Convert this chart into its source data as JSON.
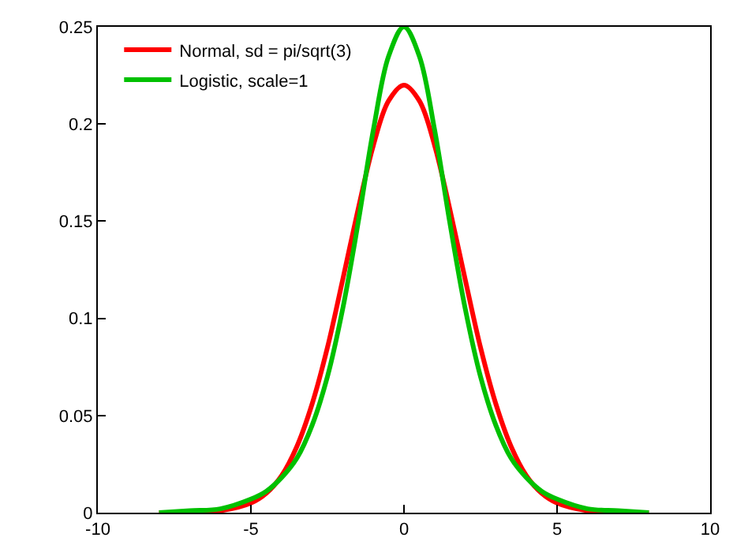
{
  "chart_data": {
    "type": "line",
    "x": [
      -8,
      -7,
      -6,
      -5,
      -4.5,
      -4,
      -3.5,
      -3,
      -2.5,
      -2,
      -1.5,
      -1,
      -0.5,
      0,
      0.5,
      1,
      1.5,
      2,
      2.5,
      3,
      3.5,
      4,
      4.5,
      5,
      6,
      7,
      8
    ],
    "series": [
      {
        "name": "Normal, sd = pi/sqrt(3)",
        "color": "#ff0000",
        "values": [
          0,
          0,
          0.001,
          0.005,
          0.01,
          0.019,
          0.034,
          0.056,
          0.085,
          0.12,
          0.156,
          0.189,
          0.212,
          0.22,
          0.212,
          0.189,
          0.156,
          0.12,
          0.085,
          0.056,
          0.034,
          0.019,
          0.01,
          0.005,
          0.001,
          0,
          0
        ]
      },
      {
        "name": "Logistic, scale=1",
        "color": "#00c000",
        "values": [
          0,
          0.001,
          0.002,
          0.007,
          0.011,
          0.018,
          0.028,
          0.045,
          0.07,
          0.105,
          0.149,
          0.197,
          0.235,
          0.25,
          0.235,
          0.197,
          0.149,
          0.105,
          0.07,
          0.045,
          0.028,
          0.018,
          0.011,
          0.007,
          0.002,
          0.001,
          0
        ]
      }
    ],
    "xlim": [
      -10,
      10
    ],
    "xticks": [
      -10,
      -5,
      0,
      5,
      10
    ],
    "ylim": [
      0,
      0.25
    ],
    "yticks": [
      0,
      0.05,
      0.1,
      0.15,
      0.2,
      0.25
    ],
    "legend": "top left",
    "marker": "none",
    "line_style": "solid"
  }
}
